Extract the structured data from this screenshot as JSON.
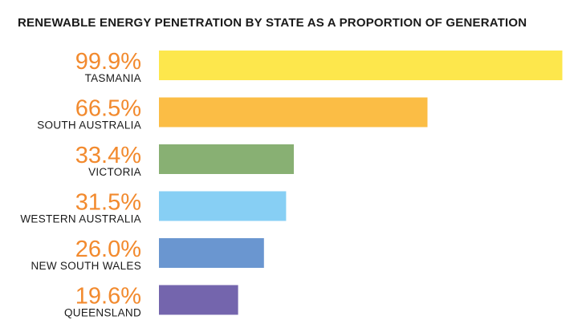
{
  "chart_data": {
    "type": "bar",
    "orientation": "horizontal",
    "title": "RENEWABLE ENERGY PENETRATION BY STATE AS A PROPORTION OF GENERATION",
    "categories": [
      "TASMANIA",
      "SOUTH AUSTRALIA",
      "VICTORIA",
      "WESTERN AUSTRALIA",
      "NEW SOUTH WALES",
      "QUEENSLAND"
    ],
    "values": [
      99.9,
      66.5,
      33.4,
      31.5,
      26.0,
      19.6
    ],
    "value_labels": [
      "99.9%",
      "66.5%",
      "33.4%",
      "31.5%",
      "26.0%",
      "19.6%"
    ],
    "colors": [
      "#fde74c",
      "#fbbd45",
      "#88b073",
      "#87cff4",
      "#6a96d0",
      "#7465ad"
    ],
    "label_color": "#f28a2e",
    "xlim": [
      0,
      100
    ],
    "grid": false,
    "legend": "none"
  }
}
